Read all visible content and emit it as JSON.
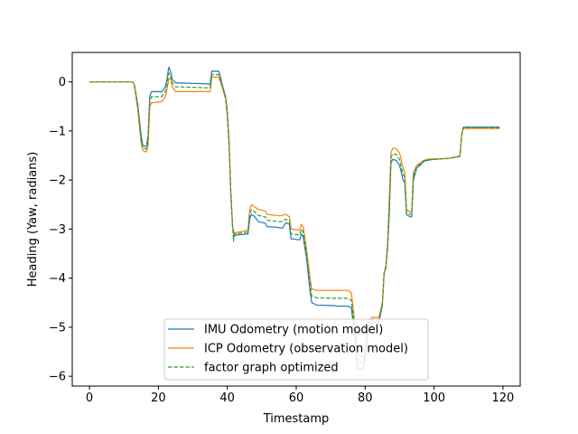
{
  "chart_data": {
    "type": "line",
    "title": "",
    "xlabel": "Timestamp",
    "ylabel": "Heading (Yaw, radians)",
    "xlim": [
      -5,
      125
    ],
    "ylim": [
      -6.2,
      0.6
    ],
    "xticks": [
      0,
      20,
      40,
      60,
      80,
      100,
      120
    ],
    "yticks": [
      0,
      -1,
      -2,
      -3,
      -4,
      -5,
      -6
    ],
    "xtick_labels": [
      "0",
      "20",
      "40",
      "60",
      "80",
      "100",
      "120"
    ],
    "ytick_labels": [
      "0",
      "−1",
      "−2",
      "−3",
      "−4",
      "−5",
      "−6"
    ],
    "grid": false,
    "legend_position": "lower-center",
    "series": [
      {
        "name": "IMU Odometry (motion model)",
        "color": "#1f77b4",
        "dash": "solid",
        "points": [
          [
            0,
            0
          ],
          [
            12.5,
            0
          ],
          [
            13,
            -0.05
          ],
          [
            14,
            -0.45
          ],
          [
            15,
            -1.1
          ],
          [
            15.5,
            -1.3
          ],
          [
            16.5,
            -1.32
          ],
          [
            17,
            -1.1
          ],
          [
            17.5,
            -0.3
          ],
          [
            18,
            -0.2
          ],
          [
            21,
            -0.2
          ],
          [
            22,
            -0.1
          ],
          [
            22.5,
            0.05
          ],
          [
            23,
            0.3
          ],
          [
            23.5,
            0.22
          ],
          [
            24,
            0.05
          ],
          [
            25,
            -0.02
          ],
          [
            34,
            -0.04
          ],
          [
            35,
            -0.05
          ],
          [
            35.5,
            0.22
          ],
          [
            37.5,
            0.22
          ],
          [
            38,
            0.1
          ],
          [
            38.5,
            -0.05
          ],
          [
            39.5,
            -0.3
          ],
          [
            40,
            -0.6
          ],
          [
            40.5,
            -1.2
          ],
          [
            41,
            -2.2
          ],
          [
            41.5,
            -2.9
          ],
          [
            42,
            -3.15
          ],
          [
            42.5,
            -3.12
          ],
          [
            46,
            -3.1
          ],
          [
            46.5,
            -2.8
          ],
          [
            47,
            -2.7
          ],
          [
            48,
            -2.75
          ],
          [
            49,
            -2.85
          ],
          [
            51,
            -2.88
          ],
          [
            51.5,
            -2.95
          ],
          [
            54,
            -2.96
          ],
          [
            55,
            -2.97
          ],
          [
            56,
            -2.98
          ],
          [
            57,
            -2.87
          ],
          [
            58,
            -2.9
          ],
          [
            58.5,
            -3.2
          ],
          [
            61,
            -3.22
          ],
          [
            61.5,
            -3.1
          ],
          [
            62,
            -3.15
          ],
          [
            63,
            -3.6
          ],
          [
            64,
            -4.25
          ],
          [
            64.5,
            -4.5
          ],
          [
            66,
            -4.55
          ],
          [
            71,
            -4.56
          ],
          [
            72,
            -4.57
          ],
          [
            75,
            -4.57
          ],
          [
            76,
            -4.6
          ],
          [
            77,
            -5.2
          ],
          [
            77.5,
            -5.7
          ],
          [
            78,
            -5.85
          ],
          [
            79,
            -5.85
          ],
          [
            79.5,
            -5.82
          ],
          [
            80,
            -5.6
          ],
          [
            81,
            -5.0
          ],
          [
            82,
            -4.9
          ],
          [
            84,
            -4.9
          ],
          [
            85,
            -4.55
          ],
          [
            85.5,
            -3.9
          ],
          [
            86,
            -3.8
          ],
          [
            86.5,
            -3.4
          ],
          [
            87,
            -2.7
          ],
          [
            87.5,
            -1.65
          ],
          [
            88,
            -1.58
          ],
          [
            89,
            -1.6
          ],
          [
            90,
            -1.7
          ],
          [
            91,
            -2.0
          ],
          [
            91.5,
            -2.05
          ],
          [
            92,
            -2.7
          ],
          [
            93,
            -2.75
          ],
          [
            93.5,
            -2.75
          ],
          [
            94,
            -2.0
          ],
          [
            95,
            -1.75
          ],
          [
            96,
            -1.7
          ],
          [
            97,
            -1.62
          ],
          [
            98,
            -1.6
          ],
          [
            99,
            -1.59
          ],
          [
            100,
            -1.58
          ],
          [
            104,
            -1.56
          ],
          [
            105,
            -1.55
          ],
          [
            107,
            -1.52
          ],
          [
            107.5,
            -1.5
          ],
          [
            108,
            -1.1
          ],
          [
            108.5,
            -0.92
          ],
          [
            119,
            -0.92
          ]
        ]
      },
      {
        "name": "ICP Odometry (observation model)",
        "color": "#ff7f0e",
        "dash": "solid",
        "points": [
          [
            0,
            0
          ],
          [
            12.5,
            0
          ],
          [
            13,
            -0.05
          ],
          [
            14,
            -0.55
          ],
          [
            15,
            -1.25
          ],
          [
            15.5,
            -1.4
          ],
          [
            16.5,
            -1.43
          ],
          [
            17,
            -1.3
          ],
          [
            17.5,
            -0.5
          ],
          [
            18,
            -0.43
          ],
          [
            21,
            -0.4
          ],
          [
            22,
            -0.3
          ],
          [
            22.5,
            -0.15
          ],
          [
            23,
            0.05
          ],
          [
            23.5,
            0.08
          ],
          [
            24,
            -0.1
          ],
          [
            25,
            -0.2
          ],
          [
            34,
            -0.2
          ],
          [
            35,
            -0.2
          ],
          [
            35.5,
            0.1
          ],
          [
            37.5,
            0.1
          ],
          [
            38,
            0.0
          ],
          [
            38.5,
            -0.1
          ],
          [
            39.5,
            -0.35
          ],
          [
            40,
            -0.7
          ],
          [
            40.5,
            -1.3
          ],
          [
            41,
            -2.3
          ],
          [
            41.5,
            -2.95
          ],
          [
            42,
            -3.08
          ],
          [
            46,
            -3.02
          ],
          [
            46.5,
            -2.6
          ],
          [
            47,
            -2.5
          ],
          [
            48,
            -2.55
          ],
          [
            49,
            -2.6
          ],
          [
            51,
            -2.63
          ],
          [
            51.5,
            -2.7
          ],
          [
            54,
            -2.72
          ],
          [
            55,
            -2.73
          ],
          [
            56,
            -2.72
          ],
          [
            57,
            -2.7
          ],
          [
            58,
            -2.75
          ],
          [
            58.5,
            -3.0
          ],
          [
            61,
            -3.02
          ],
          [
            61.5,
            -2.9
          ],
          [
            62,
            -2.95
          ],
          [
            63,
            -3.4
          ],
          [
            64,
            -4.0
          ],
          [
            64.5,
            -4.22
          ],
          [
            66,
            -4.25
          ],
          [
            71,
            -4.25
          ],
          [
            72,
            -4.25
          ],
          [
            75,
            -4.25
          ],
          [
            76,
            -4.3
          ],
          [
            77,
            -4.9
          ],
          [
            77.5,
            -5.4
          ],
          [
            78,
            -5.55
          ],
          [
            79,
            -5.6
          ],
          [
            79.5,
            -5.6
          ],
          [
            80,
            -5.5
          ],
          [
            81,
            -4.9
          ],
          [
            82,
            -4.8
          ],
          [
            84,
            -4.8
          ],
          [
            85,
            -4.5
          ],
          [
            85.5,
            -3.9
          ],
          [
            86,
            -3.75
          ],
          [
            86.5,
            -3.3
          ],
          [
            87,
            -2.4
          ],
          [
            87.5,
            -1.45
          ],
          [
            88,
            -1.35
          ],
          [
            89,
            -1.36
          ],
          [
            90,
            -1.45
          ],
          [
            91,
            -1.75
          ],
          [
            91.5,
            -1.85
          ],
          [
            92,
            -2.6
          ],
          [
            93,
            -2.65
          ],
          [
            93.5,
            -2.65
          ],
          [
            94,
            -1.85
          ],
          [
            95,
            -1.7
          ],
          [
            96,
            -1.65
          ],
          [
            97,
            -1.6
          ],
          [
            98,
            -1.58
          ],
          [
            99,
            -1.57
          ],
          [
            100,
            -1.57
          ],
          [
            104,
            -1.56
          ],
          [
            105,
            -1.55
          ],
          [
            107,
            -1.53
          ],
          [
            107.5,
            -1.52
          ],
          [
            108,
            -1.1
          ],
          [
            108.5,
            -0.95
          ],
          [
            119,
            -0.95
          ]
        ]
      },
      {
        "name": "factor graph optimized",
        "color": "#2ca02c",
        "dash": "dashed",
        "points": [
          [
            0,
            0
          ],
          [
            12.5,
            0
          ],
          [
            13,
            -0.05
          ],
          [
            14,
            -0.5
          ],
          [
            15,
            -1.18
          ],
          [
            15.5,
            -1.35
          ],
          [
            16.5,
            -1.37
          ],
          [
            17,
            -1.2
          ],
          [
            17.5,
            -0.4
          ],
          [
            18,
            -0.3
          ],
          [
            21,
            -0.3
          ],
          [
            22,
            -0.2
          ],
          [
            22.5,
            -0.05
          ],
          [
            23,
            0.18
          ],
          [
            23.5,
            0.15
          ],
          [
            24,
            -0.02
          ],
          [
            25,
            -0.1
          ],
          [
            34,
            -0.12
          ],
          [
            35,
            -0.12
          ],
          [
            35.5,
            0.15
          ],
          [
            37.5,
            0.15
          ],
          [
            38,
            0.05
          ],
          [
            38.5,
            -0.08
          ],
          [
            39.5,
            -0.32
          ],
          [
            40,
            -0.65
          ],
          [
            40.5,
            -1.25
          ],
          [
            41,
            -2.25
          ],
          [
            41.5,
            -2.92
          ],
          [
            41.8,
            -3.25
          ],
          [
            42,
            -3.1
          ],
          [
            46,
            -3.06
          ],
          [
            46.5,
            -2.7
          ],
          [
            47,
            -2.6
          ],
          [
            48,
            -2.65
          ],
          [
            49,
            -2.72
          ],
          [
            51,
            -2.75
          ],
          [
            51.5,
            -2.82
          ],
          [
            54,
            -2.84
          ],
          [
            55,
            -2.85
          ],
          [
            56,
            -2.85
          ],
          [
            57,
            -2.8
          ],
          [
            58,
            -2.82
          ],
          [
            58.5,
            -3.1
          ],
          [
            61,
            -3.12
          ],
          [
            61.5,
            -3.0
          ],
          [
            62,
            -3.05
          ],
          [
            63,
            -3.5
          ],
          [
            64,
            -4.12
          ],
          [
            64.5,
            -4.37
          ],
          [
            66,
            -4.4
          ],
          [
            71,
            -4.41
          ],
          [
            72,
            -4.41
          ],
          [
            75,
            -4.41
          ],
          [
            76,
            -4.45
          ],
          [
            77,
            -5.05
          ],
          [
            77.5,
            -5.55
          ],
          [
            78,
            -5.7
          ],
          [
            79,
            -5.72
          ],
          [
            79.5,
            -5.71
          ],
          [
            80,
            -5.55
          ],
          [
            81,
            -4.95
          ],
          [
            82,
            -4.85
          ],
          [
            84,
            -4.85
          ],
          [
            85,
            -4.52
          ],
          [
            85.5,
            -3.9
          ],
          [
            86,
            -3.78
          ],
          [
            86.5,
            -3.35
          ],
          [
            87,
            -2.55
          ],
          [
            87.5,
            -1.55
          ],
          [
            88,
            -1.47
          ],
          [
            89,
            -1.48
          ],
          [
            90,
            -1.58
          ],
          [
            91,
            -1.88
          ],
          [
            91.5,
            -1.95
          ],
          [
            92,
            -2.65
          ],
          [
            93,
            -2.7
          ],
          [
            93.5,
            -2.7
          ],
          [
            94,
            -1.92
          ],
          [
            95,
            -1.72
          ],
          [
            96,
            -1.68
          ],
          [
            97,
            -1.61
          ],
          [
            98,
            -1.59
          ],
          [
            99,
            -1.58
          ],
          [
            100,
            -1.58
          ],
          [
            104,
            -1.56
          ],
          [
            105,
            -1.55
          ],
          [
            107,
            -1.52
          ],
          [
            107.5,
            -1.51
          ],
          [
            108,
            -1.1
          ],
          [
            108.5,
            -0.93
          ],
          [
            119,
            -0.93
          ]
        ]
      }
    ]
  }
}
